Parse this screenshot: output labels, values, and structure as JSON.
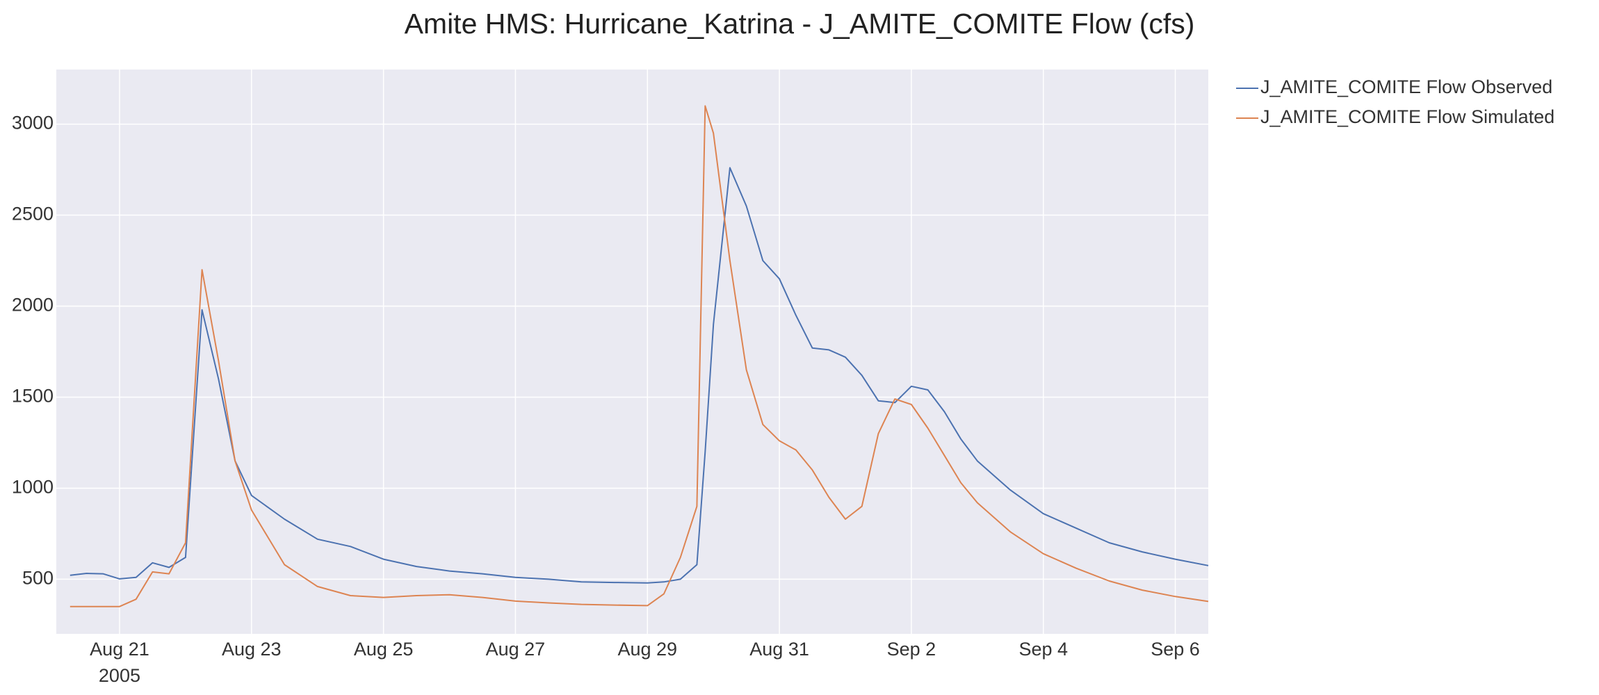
{
  "chart_data": {
    "type": "line",
    "title": "Amite HMS: Hurricane_Katrina - J_AMITE_COMITE Flow (cfs)",
    "x": [
      "2005-08-20T06:00",
      "2005-08-20T12:00",
      "2005-08-20T18:00",
      "2005-08-21T00:00",
      "2005-08-21T06:00",
      "2005-08-21T12:00",
      "2005-08-21T18:00",
      "2005-08-22T00:00",
      "2005-08-22T06:00",
      "2005-08-22T12:00",
      "2005-08-22T18:00",
      "2005-08-23T00:00",
      "2005-08-23T12:00",
      "2005-08-24T00:00",
      "2005-08-24T12:00",
      "2005-08-25T00:00",
      "2005-08-25T12:00",
      "2005-08-26T00:00",
      "2005-08-26T12:00",
      "2005-08-27T00:00",
      "2005-08-27T12:00",
      "2005-08-28T00:00",
      "2005-08-28T12:00",
      "2005-08-29T00:00",
      "2005-08-29T06:00",
      "2005-08-29T12:00",
      "2005-08-29T18:00",
      "2005-08-29T21:00",
      "2005-08-30T00:00",
      "2005-08-30T06:00",
      "2005-08-30T12:00",
      "2005-08-30T18:00",
      "2005-08-31T00:00",
      "2005-08-31T06:00",
      "2005-08-31T12:00",
      "2005-08-31T18:00",
      "2005-09-01T00:00",
      "2005-09-01T06:00",
      "2005-09-01T12:00",
      "2005-09-01T18:00",
      "2005-09-02T00:00",
      "2005-09-02T06:00",
      "2005-09-02T12:00",
      "2005-09-02T18:00",
      "2005-09-03T00:00",
      "2005-09-03T12:00",
      "2005-09-04T00:00",
      "2005-09-04T12:00",
      "2005-09-05T00:00",
      "2005-09-05T12:00",
      "2005-09-06T00:00",
      "2005-09-06T12:00"
    ],
    "series": [
      {
        "name": "J_AMITE_COMITE Flow Observed",
        "color": "#4c72b0",
        "values": [
          522,
          532,
          530,
          502,
          510,
          590,
          565,
          620,
          1980,
          1600,
          1150,
          960,
          830,
          720,
          680,
          610,
          570,
          545,
          530,
          510,
          500,
          485,
          482,
          480,
          485,
          500,
          580,
          1200,
          1900,
          2760,
          2550,
          2250,
          2150,
          1950,
          1770,
          1760,
          1720,
          1620,
          1480,
          1470,
          1560,
          1540,
          1420,
          1270,
          1150,
          990,
          860,
          780,
          700,
          650,
          610,
          575
        ]
      },
      {
        "name": "J_AMITE_COMITE Flow Simulated",
        "color": "#dd8452",
        "values": [
          350,
          350,
          350,
          350,
          390,
          540,
          530,
          700,
          2200,
          1700,
          1150,
          880,
          580,
          460,
          410,
          400,
          410,
          415,
          400,
          380,
          370,
          362,
          358,
          355,
          420,
          620,
          900,
          3100,
          2950,
          2250,
          1650,
          1350,
          1260,
          1210,
          1100,
          950,
          830,
          900,
          1300,
          1490,
          1460,
          1330,
          1180,
          1030,
          920,
          760,
          640,
          560,
          490,
          440,
          405,
          378
        ]
      }
    ],
    "xlim": [
      "2005-08-20T01:00",
      "2005-09-06T12:00"
    ],
    "xticks": [
      {
        "value": "2005-08-21",
        "label": "Aug 21"
      },
      {
        "value": "2005-08-23",
        "label": "Aug 23"
      },
      {
        "value": "2005-08-25",
        "label": "Aug 25"
      },
      {
        "value": "2005-08-27",
        "label": "Aug 27"
      },
      {
        "value": "2005-08-29",
        "label": "Aug 29"
      },
      {
        "value": "2005-08-31",
        "label": "Aug 31"
      },
      {
        "value": "2005-09-02",
        "label": "Sep 2"
      },
      {
        "value": "2005-09-04",
        "label": "Sep 4"
      },
      {
        "value": "2005-09-06",
        "label": "Sep 6"
      }
    ],
    "x_year_label": "2005",
    "ylim": [
      200,
      3300
    ],
    "yticks": [
      500,
      1000,
      1500,
      2000,
      2500,
      3000
    ],
    "grid": true,
    "legend": "outside-right"
  }
}
